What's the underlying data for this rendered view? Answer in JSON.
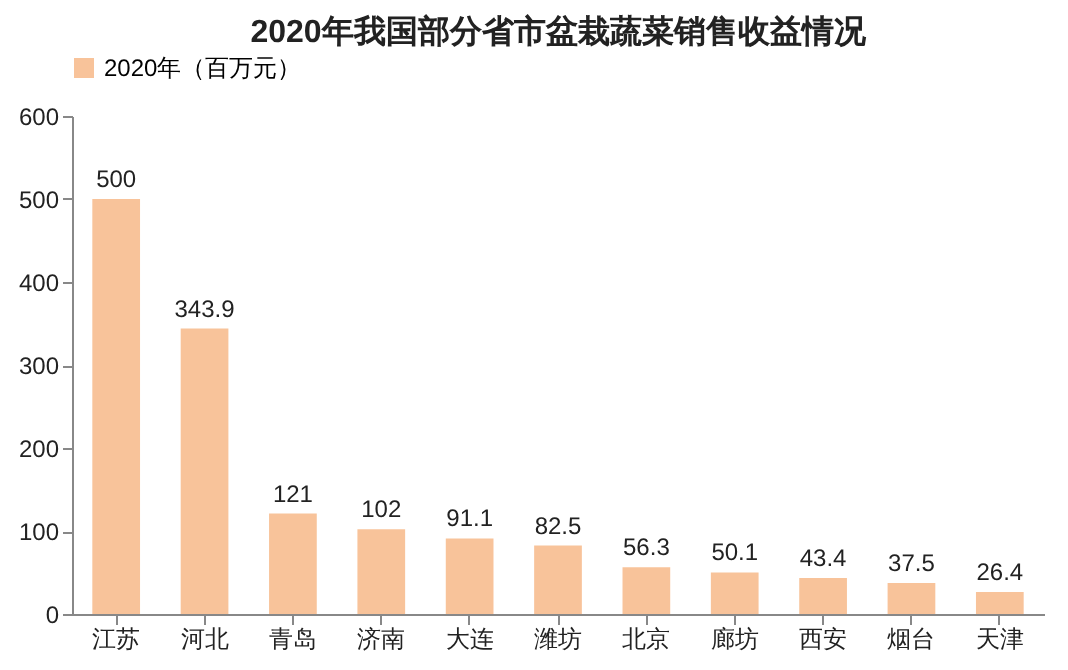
{
  "chart_data": {
    "type": "bar",
    "title": "2020年我国部分省市盆栽蔬菜销售收益情况",
    "categories": [
      "江苏",
      "河北",
      "青岛",
      "济南",
      "大连",
      "潍坊",
      "北京",
      "廊坊",
      "西安",
      "烟台",
      "天津"
    ],
    "series": [
      {
        "name": "2020年（百万元）",
        "color": "#f8c39a",
        "values": [
          500,
          343.9,
          121,
          102,
          91.1,
          82.5,
          56.3,
          50.1,
          43.4,
          37.5,
          26.4
        ]
      }
    ],
    "ylim": [
      0,
      600
    ],
    "yticks": [
      0,
      100,
      200,
      300,
      400,
      500,
      600
    ],
    "grid": false,
    "legend": "top",
    "data_labels": true
  }
}
